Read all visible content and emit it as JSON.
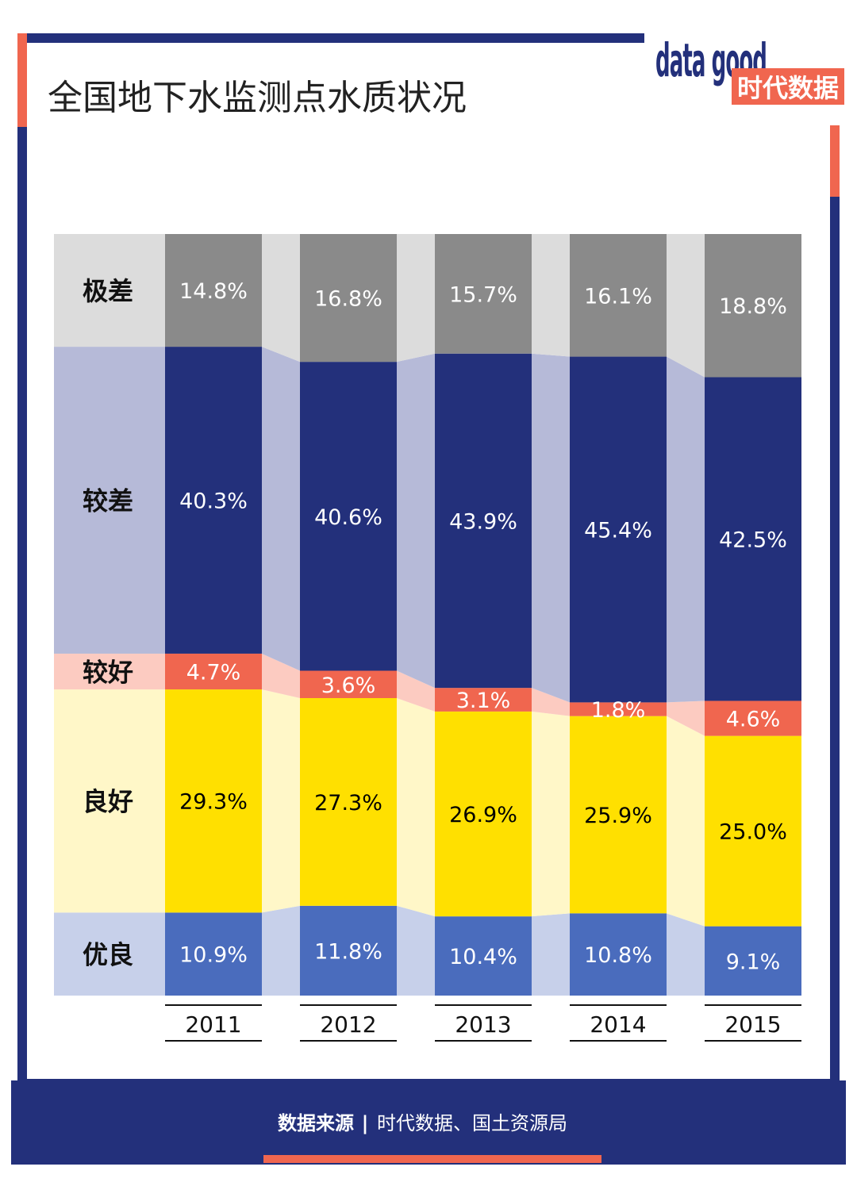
{
  "title": "全国地下水监测点水质状况",
  "logo": {
    "word": "data good",
    "brand": "时代数据"
  },
  "footer": {
    "source_label": "数据来源",
    "separator": "|",
    "source_text": "时代数据、国土资源局"
  },
  "colors": {
    "frame": "#23307b",
    "accent": "#f0664f",
    "background": "#ffffff",
    "excellent": "#4a6cbd",
    "excellent_band": "#c7d0ea",
    "good": "#ffe000",
    "good_band": "#fff7c8",
    "fairly_good": "#f0664f",
    "fairly_good_band": "#fccbc1",
    "poor": "#23307b",
    "poor_band": "#b6bad8",
    "very_poor": "#8a8a8a",
    "very_poor_band": "#dcdcdc",
    "bar_text_dark": "#000000",
    "bar_text_light": "#ffffff"
  },
  "chart_data": {
    "type": "bar",
    "stacked": true,
    "categories": [
      "2011",
      "2012",
      "2013",
      "2014",
      "2015"
    ],
    "series": [
      {
        "name": "优良",
        "key": "excellent",
        "values": [
          10.9,
          11.8,
          10.4,
          10.8,
          9.1
        ],
        "labels": [
          "10.9%",
          "11.8%",
          "10.4%",
          "10.8%",
          "9.1%"
        ]
      },
      {
        "name": "良好",
        "key": "good",
        "values": [
          29.3,
          27.3,
          26.9,
          25.9,
          25.0
        ],
        "labels": [
          "29.3%",
          "27.3%",
          "26.9%",
          "25.9%",
          "25.0%"
        ]
      },
      {
        "name": "较好",
        "key": "fairly_good",
        "values": [
          4.7,
          3.6,
          3.1,
          1.8,
          4.6
        ],
        "labels": [
          "4.7%",
          "3.6%",
          "3.1%",
          "1.8%",
          "4.6%"
        ]
      },
      {
        "name": "较差",
        "key": "poor",
        "values": [
          40.3,
          40.6,
          43.9,
          45.4,
          42.5
        ],
        "labels": [
          "40.3%",
          "40.6%",
          "43.9%",
          "45.4%",
          "42.5%"
        ]
      },
      {
        "name": "极差",
        "key": "very_poor",
        "values": [
          14.8,
          16.8,
          15.7,
          16.1,
          18.8
        ],
        "labels": [
          "14.8%",
          "16.8%",
          "15.7%",
          "16.1%",
          "18.8%"
        ]
      }
    ],
    "ylim": [
      0,
      100
    ],
    "grid": false,
    "legend": "left, row labels"
  }
}
